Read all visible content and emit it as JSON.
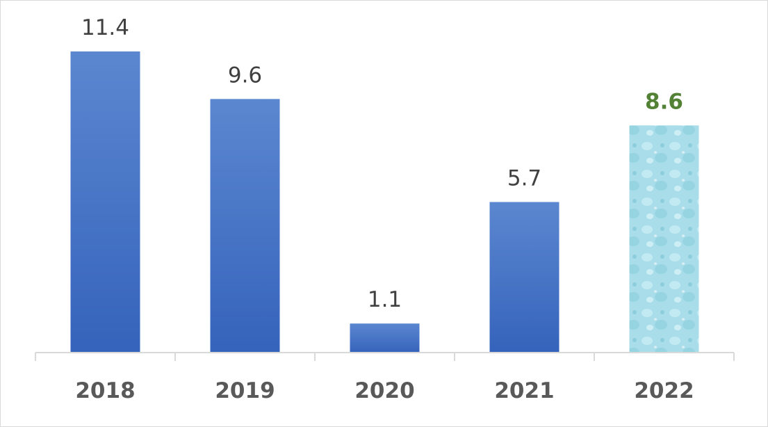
{
  "chart_data": {
    "type": "bar",
    "title": "",
    "xlabel": "",
    "ylabel": "",
    "categories": [
      "2018",
      "2019",
      "2020",
      "2021",
      "2022"
    ],
    "values": [
      11.4,
      9.6,
      1.1,
      5.7,
      8.6
    ],
    "data_labels": [
      "11.4",
      "9.6",
      "1.1",
      "5.7",
      "8.6"
    ],
    "highlighted_category": "2022",
    "ylim": [
      0,
      12
    ],
    "grid": false,
    "legend": "none",
    "colors": {
      "bar": "#4472c4",
      "bar_light": "#5b87d0",
      "highlight_fill": "#a8dde9",
      "highlight_label": "#538135",
      "label": "#404040",
      "axis": "#d9d9d9",
      "category_label": "#595959"
    }
  }
}
